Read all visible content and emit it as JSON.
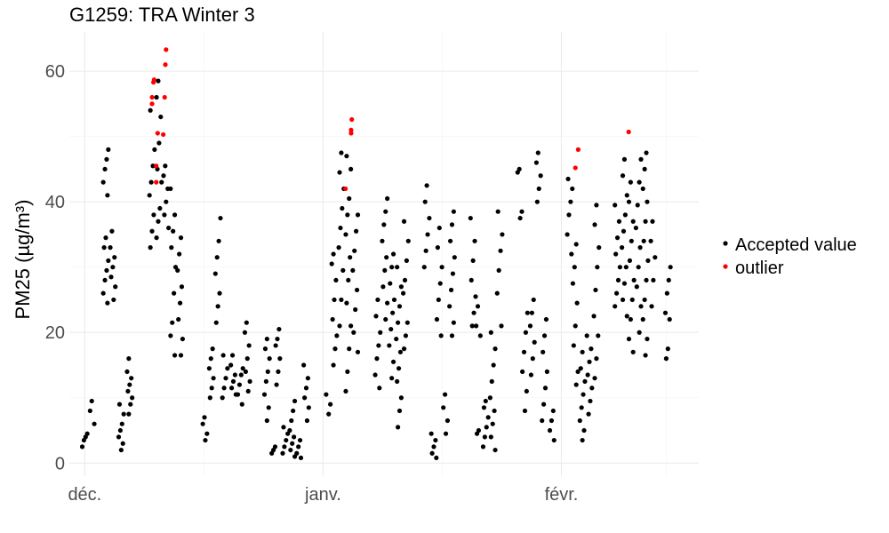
{
  "chart_data": {
    "type": "scatter",
    "title": "G1259: TRA Winter 3",
    "ylabel": "PM25",
    "ylabel_unit": "µg/m³",
    "xlabel": "",
    "x_tick_labels": [
      "déc.",
      "janv.",
      "févr."
    ],
    "y_tick_labels": [
      "0",
      "20",
      "40",
      "60"
    ],
    "x_axis": "time (days since start of December)",
    "ylim": [
      -2,
      66
    ],
    "grid": true,
    "legend": {
      "placement": "right",
      "entries": [
        "Accepted value",
        "outlier"
      ]
    },
    "colors": {
      "Accepted value": "#000000",
      "outlier": "#ff0000"
    },
    "series": [
      {
        "name": "Accepted value",
        "groups": [
          {
            "x": 0.0,
            "y": [
              2.5,
              3.5,
              4.0,
              4.5
            ]
          },
          {
            "x": 0.5,
            "y": [
              6.0,
              8.0,
              9.5
            ]
          },
          {
            "x": 1.5,
            "y": [
              24.5,
              26.0,
              28.0,
              29.5,
              31.0,
              33.0,
              34.5,
              41.0,
              43.0,
              45.0,
              46.5,
              48.0
            ]
          },
          {
            "x": 2.0,
            "y": [
              25.0,
              27.0,
              28.5,
              30.0,
              31.5,
              33.0,
              35.5
            ]
          },
          {
            "x": 2.6,
            "y": [
              2.0,
              3.0,
              4.0,
              5.0,
              6.0,
              7.5,
              9.0
            ]
          },
          {
            "x": 3.2,
            "y": [
              7.5,
              9.0,
              10.0,
              11.0,
              12.0,
              13.0,
              14.0,
              16.0
            ]
          },
          {
            "x": 4.8,
            "y": [
              33.0,
              35.5,
              38.0,
              41.0,
              43.0,
              45.5,
              48.0,
              54.0
            ]
          },
          {
            "x": 5.3,
            "y": [
              34.5,
              37.0,
              39.0,
              43.0,
              45.0,
              49.0,
              53.0,
              56.0,
              58.5
            ]
          },
          {
            "x": 5.8,
            "y": [
              36.0,
              38.0,
              40.0,
              42.0,
              44.0,
              45.5
            ]
          },
          {
            "x": 6.3,
            "y": [
              16.5,
              19.5,
              21.5,
              26.0,
              30.0,
              33.0,
              35.5,
              38.0,
              42.0
            ]
          },
          {
            "x": 6.8,
            "y": [
              16.5,
              19.0,
              22.0,
              24.5,
              27.0,
              29.5,
              32.0,
              34.5
            ]
          },
          {
            "x": 8.6,
            "y": [
              3.5,
              4.5,
              6.0,
              7.0
            ]
          },
          {
            "x": 9.0,
            "y": [
              10.0,
              11.5,
              13.0,
              14.5,
              16.0,
              17.5
            ]
          },
          {
            "x": 9.5,
            "y": [
              21.5,
              24.0,
              26.0,
              29.0,
              31.5,
              34.0,
              37.5
            ]
          },
          {
            "x": 10.0,
            "y": [
              10.0,
              11.5,
              13.0,
              14.5,
              16.5
            ]
          },
          {
            "x": 10.6,
            "y": [
              10.5,
              11.5,
              12.5,
              13.5,
              15.0,
              16.5
            ]
          },
          {
            "x": 11.1,
            "y": [
              9.0,
              10.5,
              12.0,
              13.5,
              14.5
            ]
          },
          {
            "x": 11.6,
            "y": [
              11.0,
              12.5,
              14.0,
              16.0,
              18.0,
              20.0,
              21.5
            ]
          },
          {
            "x": 13.0,
            "y": [
              6.5,
              8.5,
              10.5,
              12.5,
              14.0,
              16.0,
              17.5,
              19.0
            ]
          },
          {
            "x": 13.4,
            "y": [
              1.5,
              2.0,
              2.5
            ]
          },
          {
            "x": 13.8,
            "y": [
              12.0,
              14.0,
              16.0,
              18.0,
              19.0,
              20.5
            ]
          },
          {
            "x": 14.3,
            "y": [
              1.5,
              2.5,
              3.5,
              4.5,
              5.5
            ]
          },
          {
            "x": 14.8,
            "y": [
              1.0,
              2.0,
              3.0,
              4.0,
              5.0,
              6.5,
              8.0,
              9.5
            ]
          },
          {
            "x": 15.3,
            "y": [
              0.8,
              1.5,
              2.5,
              3.5
            ]
          },
          {
            "x": 15.8,
            "y": [
              6.5,
              8.5,
              10.0,
              11.5,
              13.0,
              15.0
            ]
          },
          {
            "x": 17.4,
            "y": [
              7.5,
              9.0,
              10.5
            ]
          },
          {
            "x": 17.8,
            "y": [
              15.0,
              17.5,
              19.5,
              22.0,
              25.0,
              28.0,
              30.5,
              32.0
            ]
          },
          {
            "x": 18.3,
            "y": [
              21.0,
              25.0,
              29.5,
              33.0,
              36.0,
              39.0,
              42.0,
              44.5,
              47.5
            ]
          },
          {
            "x": 18.8,
            "y": [
              11.0,
              14.0,
              17.5,
              21.0,
              24.5,
              28.0,
              31.5,
              35.0,
              38.0,
              40.5,
              45.0,
              47.0
            ]
          },
          {
            "x": 19.3,
            "y": [
              17.0,
              20.0,
              23.5,
              26.5,
              29.5,
              32.5,
              35.5,
              38.0
            ]
          },
          {
            "x": 20.9,
            "y": [
              11.5,
              13.5,
              16.0,
              18.0,
              20.0,
              22.5,
              25.0
            ]
          },
          {
            "x": 21.4,
            "y": [
              22.0,
              24.5,
              27.0,
              29.5,
              31.5,
              34.0,
              36.5,
              38.5,
              40.5
            ]
          },
          {
            "x": 21.9,
            "y": [
              13.0,
              15.5,
              18.0,
              20.5,
              23.0,
              25.0,
              27.5,
              30.0,
              32.0
            ]
          },
          {
            "x": 22.4,
            "y": [
              5.5,
              8.0,
              10.0,
              12.5,
              14.5,
              17.0,
              19.0,
              21.5,
              24.0,
              27.0,
              30.0
            ]
          },
          {
            "x": 22.9,
            "y": [
              17.5,
              19.5,
              21.5,
              26.0,
              28.0,
              31.0,
              34.0,
              37.0
            ]
          },
          {
            "x": 24.4,
            "y": [
              30.0,
              32.5,
              35.0,
              37.5,
              40.0,
              42.5
            ]
          },
          {
            "x": 24.9,
            "y": [
              0.8,
              1.5,
              2.5,
              3.5,
              4.5
            ]
          },
          {
            "x": 25.3,
            "y": [
              19.5,
              22.0,
              25.0,
              27.5,
              30.0,
              33.0,
              36.0
            ]
          },
          {
            "x": 25.7,
            "y": [
              4.5,
              6.5,
              8.5,
              10.5
            ]
          },
          {
            "x": 26.2,
            "y": [
              19.5,
              21.5,
              24.0,
              26.5,
              29.0,
              31.5,
              34.0,
              36.5,
              38.5
            ]
          },
          {
            "x": 27.7,
            "y": [
              21.0,
              23.0,
              25.5,
              28.0,
              31.0,
              34.0,
              37.5
            ]
          },
          {
            "x": 28.1,
            "y": [
              4.5,
              5.0,
              19.5,
              21.0,
              24.0
            ]
          },
          {
            "x": 28.6,
            "y": [
              2.5,
              4.0,
              5.5,
              7.0,
              8.5,
              9.5
            ]
          },
          {
            "x": 29.1,
            "y": [
              2.0,
              4.0,
              6.0,
              8.0,
              10.0,
              12.5,
              15.0,
              17.5,
              20.0
            ]
          },
          {
            "x": 29.6,
            "y": [
              21.0,
              26.0,
              29.5,
              32.5,
              35.0,
              38.5
            ]
          },
          {
            "x": 31.0,
            "y": [
              37.5,
              38.5,
              44.5,
              45.0
            ]
          },
          {
            "x": 31.4,
            "y": [
              8.0,
              11.0,
              14.0,
              17.0,
              20.0,
              23.0
            ]
          },
          {
            "x": 31.9,
            "y": [
              13.5,
              16.0,
              18.5,
              21.0,
              23.0,
              25.0
            ]
          },
          {
            "x": 32.4,
            "y": [
              40.0,
              42.0,
              44.0,
              46.0,
              47.5
            ]
          },
          {
            "x": 32.8,
            "y": [
              6.5,
              9.0,
              11.5,
              14.0,
              17.0,
              19.5,
              22.0
            ]
          },
          {
            "x": 33.3,
            "y": [
              3.5,
              5.0,
              6.5,
              8.0
            ]
          },
          {
            "x": 34.6,
            "y": [
              32.0,
              35.0,
              38.0,
              40.0,
              42.0,
              43.5
            ]
          },
          {
            "x": 35.0,
            "y": [
              12.0,
              14.0,
              18.0,
              21.0,
              24.5,
              27.5,
              30.0,
              33.5
            ]
          },
          {
            "x": 35.5,
            "y": [
              3.5,
              5.0,
              6.5,
              8.5,
              10.5,
              12.5,
              14.5,
              17.0
            ]
          },
          {
            "x": 36.0,
            "y": [
              7.5,
              9.5,
              11.5,
              13.5,
              15.5,
              17.5,
              19.5
            ]
          },
          {
            "x": 36.5,
            "y": [
              13.0,
              16.0,
              19.5,
              22.5,
              26.5,
              30.0,
              33.0,
              36.5,
              39.5
            ]
          },
          {
            "x": 38.0,
            "y": [
              24.0,
              26.0,
              28.0,
              30.0,
              32.0,
              34.5,
              37.0,
              39.5
            ]
          },
          {
            "x": 38.5,
            "y": [
              22.5,
              25.0,
              27.5,
              30.0,
              33.0,
              35.5,
              38.0,
              41.0,
              44.0,
              46.5
            ]
          },
          {
            "x": 39.0,
            "y": [
              17.0,
              19.0,
              22.0,
              25.0,
              28.0,
              31.0,
              34.0,
              37.0,
              40.0,
              43.0
            ]
          },
          {
            "x": 39.5,
            "y": [
              20.0,
              24.0,
              27.0,
              30.0,
              33.0,
              36.0,
              39.5,
              43.0,
              46.5
            ]
          },
          {
            "x": 40.0,
            "y": [
              16.5,
              19.0,
              22.0,
              25.0,
              28.0,
              31.0,
              34.0,
              37.0,
              40.0,
              42.0,
              45.0,
              47.5
            ]
          },
          {
            "x": 40.5,
            "y": [
              24.0,
              28.0,
              31.5,
              34.0,
              37.0
            ]
          },
          {
            "x": 41.6,
            "y": [
              16.0,
              17.5,
              22.0,
              23.0,
              26.0,
              28.0,
              30.0
            ]
          }
        ]
      },
      {
        "name": "outlier",
        "points": [
          {
            "x": 4.8,
            "y": 55.0
          },
          {
            "x": 4.8,
            "y": 56.0
          },
          {
            "x": 4.9,
            "y": 58.3
          },
          {
            "x": 4.95,
            "y": 58.7
          },
          {
            "x": 5.1,
            "y": 43.0
          },
          {
            "x": 5.1,
            "y": 45.5
          },
          {
            "x": 5.2,
            "y": 50.5
          },
          {
            "x": 5.6,
            "y": 50.3
          },
          {
            "x": 5.7,
            "y": 56.0
          },
          {
            "x": 5.75,
            "y": 61.0
          },
          {
            "x": 5.8,
            "y": 63.3
          },
          {
            "x": 18.6,
            "y": 42.0
          },
          {
            "x": 19.0,
            "y": 50.5
          },
          {
            "x": 19.0,
            "y": 51.0
          },
          {
            "x": 19.05,
            "y": 52.6
          },
          {
            "x": 35.0,
            "y": 45.2
          },
          {
            "x": 35.2,
            "y": 48.0
          },
          {
            "x": 38.8,
            "y": 50.7
          }
        ]
      }
    ]
  }
}
